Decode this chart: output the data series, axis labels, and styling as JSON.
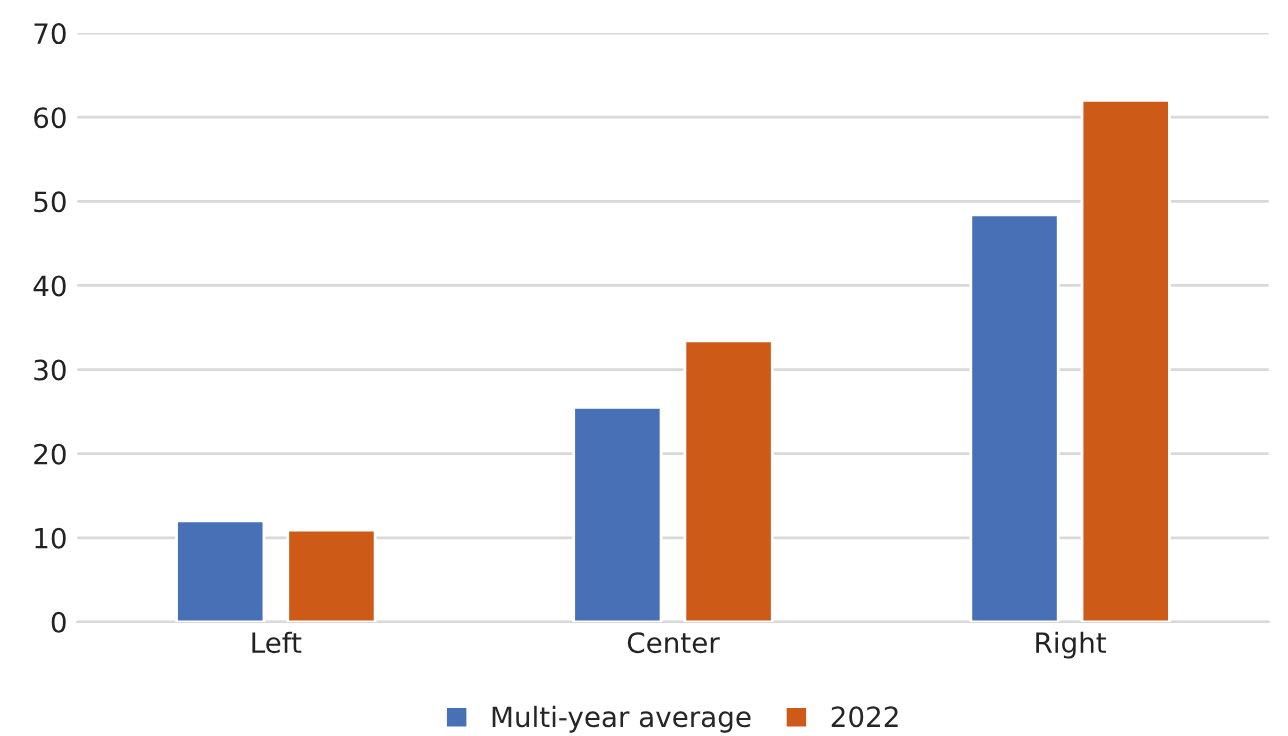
{
  "chart_data": {
    "type": "bar",
    "categories": [
      "Left",
      "Center",
      "Right"
    ],
    "series": [
      {
        "name": "Multi-year average",
        "color": "#4770b6",
        "values": [
          12.0,
          25.5,
          48.4
        ]
      },
      {
        "name": "2022",
        "color": "#cd5a17",
        "values": [
          10.9,
          33.4,
          62.0
        ]
      }
    ],
    "ylim": [
      0,
      70
    ],
    "yticks": [
      0,
      10,
      20,
      30,
      40,
      50,
      60,
      70
    ],
    "grid": "y",
    "legend": "bottom"
  }
}
